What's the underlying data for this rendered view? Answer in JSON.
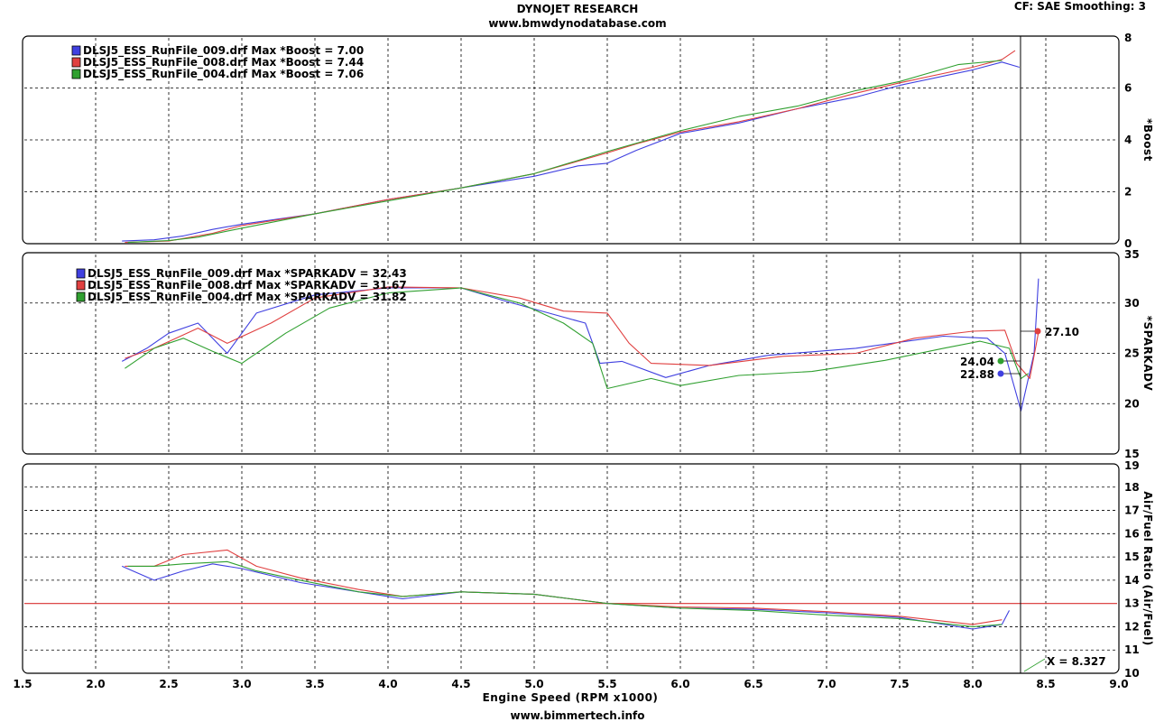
{
  "header": {
    "title": "DYNOJET RESEARCH",
    "site": "www.bmwdynodatabase.com",
    "cf_smoothing": "CF: SAE  Smoothing: 3",
    "footer": "www.bimmertech.info"
  },
  "colors": {
    "run009": "#4040e0",
    "run008": "#e04040",
    "run004": "#30a030",
    "afr_target": "#d83030",
    "cursor": "#000000"
  },
  "chart_data": [
    {
      "type": "line",
      "ylabel": "*Boost",
      "ylim": [
        0,
        8
      ],
      "yticks": [
        "0",
        "2",
        "4",
        "6",
        "8"
      ],
      "xlim": [
        1.5,
        9.0
      ],
      "grid": true,
      "legend": [
        "DLSJ5_ESS_RunFile_009.drf Max *Boost = 7.00",
        "DLSJ5_ESS_RunFile_008.drf Max *Boost = 7.44",
        "DLSJ5_ESS_RunFile_004.drf Max *Boost = 7.06"
      ],
      "series": [
        {
          "values": [
            [
              2.18,
              0.1
            ],
            [
              2.4,
              0.15
            ],
            [
              2.6,
              0.3
            ],
            [
              2.8,
              0.55
            ],
            [
              3.0,
              0.75
            ],
            [
              3.5,
              1.15
            ],
            [
              4.0,
              1.7
            ],
            [
              4.5,
              2.15
            ],
            [
              5.0,
              2.6
            ],
            [
              5.3,
              3.0
            ],
            [
              5.5,
              3.1
            ],
            [
              5.7,
              3.6
            ],
            [
              6.0,
              4.25
            ],
            [
              6.4,
              4.65
            ],
            [
              6.8,
              5.2
            ],
            [
              7.2,
              5.65
            ],
            [
              7.5,
              6.1
            ],
            [
              8.0,
              6.7
            ],
            [
              8.2,
              7.0
            ],
            [
              8.32,
              6.8
            ]
          ]
        },
        {
          "values": [
            [
              2.2,
              0.05
            ],
            [
              2.5,
              0.1
            ],
            [
              2.8,
              0.4
            ],
            [
              3.0,
              0.7
            ],
            [
              3.5,
              1.15
            ],
            [
              4.0,
              1.7
            ],
            [
              4.5,
              2.15
            ],
            [
              5.0,
              2.7
            ],
            [
              5.5,
              3.5
            ],
            [
              5.7,
              3.85
            ],
            [
              6.0,
              4.3
            ],
            [
              6.4,
              4.7
            ],
            [
              6.8,
              5.2
            ],
            [
              7.2,
              5.8
            ],
            [
              7.5,
              6.2
            ],
            [
              8.0,
              6.8
            ],
            [
              8.2,
              7.1
            ],
            [
              8.29,
              7.44
            ]
          ]
        },
        {
          "values": [
            [
              2.22,
              0.05
            ],
            [
              2.5,
              0.12
            ],
            [
              2.7,
              0.25
            ],
            [
              3.0,
              0.6
            ],
            [
              3.5,
              1.15
            ],
            [
              4.0,
              1.65
            ],
            [
              4.5,
              2.15
            ],
            [
              5.0,
              2.7
            ],
            [
              5.5,
              3.55
            ],
            [
              6.0,
              4.35
            ],
            [
              6.4,
              4.9
            ],
            [
              6.8,
              5.3
            ],
            [
              7.2,
              5.9
            ],
            [
              7.5,
              6.25
            ],
            [
              7.9,
              6.9
            ],
            [
              8.2,
              7.06
            ]
          ]
        }
      ]
    },
    {
      "type": "line",
      "ylabel": "*SPARKADV",
      "ylim": [
        15,
        35
      ],
      "yticks": [
        "15",
        "20",
        "25",
        "30",
        "35"
      ],
      "xlim": [
        1.5,
        9.0
      ],
      "grid": true,
      "legend": [
        "DLSJ5_ESS_RunFile_009.drf Max *SPARKADV = 32.43",
        "DLSJ5_ESS_RunFile_008.drf Max *SPARKADV = 31.67",
        "DLSJ5_ESS_RunFile_004.drf Max *SPARKADV = 31.82"
      ],
      "series": [
        {
          "values": [
            [
              2.18,
              24.2
            ],
            [
              2.35,
              25.5
            ],
            [
              2.5,
              27.0
            ],
            [
              2.7,
              28.0
            ],
            [
              2.9,
              25.0
            ],
            [
              3.1,
              29.0
            ],
            [
              3.5,
              30.8
            ],
            [
              4.0,
              31.5
            ],
            [
              4.5,
              31.5
            ],
            [
              4.8,
              30.2
            ],
            [
              5.1,
              29.0
            ],
            [
              5.35,
              28.0
            ],
            [
              5.45,
              24.0
            ],
            [
              5.6,
              24.2
            ],
            [
              5.9,
              22.6
            ],
            [
              6.2,
              23.8
            ],
            [
              6.6,
              24.8
            ],
            [
              7.2,
              25.5
            ],
            [
              7.8,
              26.7
            ],
            [
              8.1,
              26.5
            ],
            [
              8.22,
              25.0
            ],
            [
              8.33,
              19.3
            ],
            [
              8.42,
              25.0
            ],
            [
              8.45,
              32.43
            ]
          ]
        },
        {
          "values": [
            [
              2.2,
              24.5
            ],
            [
              2.4,
              25.5
            ],
            [
              2.7,
              27.5
            ],
            [
              2.9,
              26.0
            ],
            [
              3.2,
              28.0
            ],
            [
              3.5,
              30.5
            ],
            [
              4.0,
              31.6
            ],
            [
              4.5,
              31.5
            ],
            [
              4.9,
              30.5
            ],
            [
              5.2,
              29.2
            ],
            [
              5.5,
              29.0
            ],
            [
              5.65,
              26.0
            ],
            [
              5.8,
              24.0
            ],
            [
              6.2,
              23.8
            ],
            [
              6.7,
              24.7
            ],
            [
              7.2,
              25.0
            ],
            [
              7.6,
              26.5
            ],
            [
              8.0,
              27.2
            ],
            [
              8.22,
              27.3
            ],
            [
              8.3,
              24.0
            ],
            [
              8.39,
              22.5
            ],
            [
              8.45,
              27.1
            ]
          ]
        },
        {
          "values": [
            [
              2.2,
              23.5
            ],
            [
              2.4,
              25.5
            ],
            [
              2.6,
              26.5
            ],
            [
              2.8,
              25.2
            ],
            [
              3.0,
              24.0
            ],
            [
              3.3,
              27.0
            ],
            [
              3.6,
              29.5
            ],
            [
              4.0,
              31.0
            ],
            [
              4.5,
              31.5
            ],
            [
              4.9,
              30.0
            ],
            [
              5.2,
              28.0
            ],
            [
              5.4,
              26.0
            ],
            [
              5.5,
              21.5
            ],
            [
              5.8,
              22.5
            ],
            [
              6.0,
              21.8
            ],
            [
              6.4,
              22.8
            ],
            [
              6.9,
              23.2
            ],
            [
              7.4,
              24.3
            ],
            [
              7.8,
              25.5
            ],
            [
              8.05,
              26.2
            ],
            [
              8.25,
              25.5
            ],
            [
              8.33,
              22.5
            ],
            [
              8.38,
              23.0
            ]
          ]
        }
      ],
      "annotations": [
        "27.10",
        "24.04",
        "22.88"
      ]
    },
    {
      "type": "line",
      "ylabel": "Air/Fuel Ratio (Air/Fuel)",
      "ylim": [
        10,
        19
      ],
      "yticks": [
        "10",
        "11",
        "12",
        "13",
        "14",
        "15",
        "16",
        "17",
        "18",
        "19"
      ],
      "xlim": [
        1.5,
        9.0
      ],
      "xlabel": "Engine Speed (RPM x1000)",
      "xticks": [
        "1.5",
        "2.0",
        "2.5",
        "3.0",
        "3.5",
        "4.0",
        "4.5",
        "5.0",
        "5.5",
        "6.0",
        "6.5",
        "7.0",
        "7.5",
        "8.0",
        "8.5",
        "9.0"
      ],
      "grid": true,
      "reference_line": 13.0,
      "cursor": "X = 8.327",
      "series": [
        {
          "values": [
            [
              2.18,
              14.6
            ],
            [
              2.4,
              14.0
            ],
            [
              2.6,
              14.4
            ],
            [
              2.8,
              14.7
            ],
            [
              3.0,
              14.5
            ],
            [
              3.4,
              13.9
            ],
            [
              3.8,
              13.5
            ],
            [
              4.1,
              13.2
            ],
            [
              4.5,
              13.5
            ],
            [
              5.0,
              13.4
            ],
            [
              5.5,
              13.0
            ],
            [
              6.0,
              12.8
            ],
            [
              6.5,
              12.75
            ],
            [
              7.0,
              12.6
            ],
            [
              7.5,
              12.4
            ],
            [
              8.0,
              11.9
            ],
            [
              8.2,
              12.1
            ],
            [
              8.25,
              12.7
            ]
          ]
        },
        {
          "values": [
            [
              2.2,
              14.6
            ],
            [
              2.4,
              14.6
            ],
            [
              2.6,
              15.1
            ],
            [
              2.9,
              15.3
            ],
            [
              3.1,
              14.6
            ],
            [
              3.4,
              14.1
            ],
            [
              3.8,
              13.6
            ],
            [
              4.1,
              13.3
            ],
            [
              4.5,
              13.5
            ],
            [
              5.0,
              13.4
            ],
            [
              5.5,
              13.0
            ],
            [
              6.0,
              12.85
            ],
            [
              6.5,
              12.8
            ],
            [
              7.0,
              12.65
            ],
            [
              7.5,
              12.45
            ],
            [
              8.0,
              12.1
            ],
            [
              8.2,
              12.3
            ]
          ]
        },
        {
          "values": [
            [
              2.22,
              14.6
            ],
            [
              2.4,
              14.6
            ],
            [
              2.6,
              14.7
            ],
            [
              2.9,
              14.8
            ],
            [
              3.1,
              14.4
            ],
            [
              3.4,
              14.0
            ],
            [
              3.8,
              13.5
            ],
            [
              4.1,
              13.3
            ],
            [
              4.5,
              13.5
            ],
            [
              5.0,
              13.4
            ],
            [
              5.5,
              13.0
            ],
            [
              6.0,
              12.8
            ],
            [
              6.5,
              12.7
            ],
            [
              7.0,
              12.5
            ],
            [
              7.5,
              12.35
            ],
            [
              8.0,
              12.0
            ],
            [
              8.2,
              12.1
            ]
          ]
        }
      ]
    }
  ]
}
